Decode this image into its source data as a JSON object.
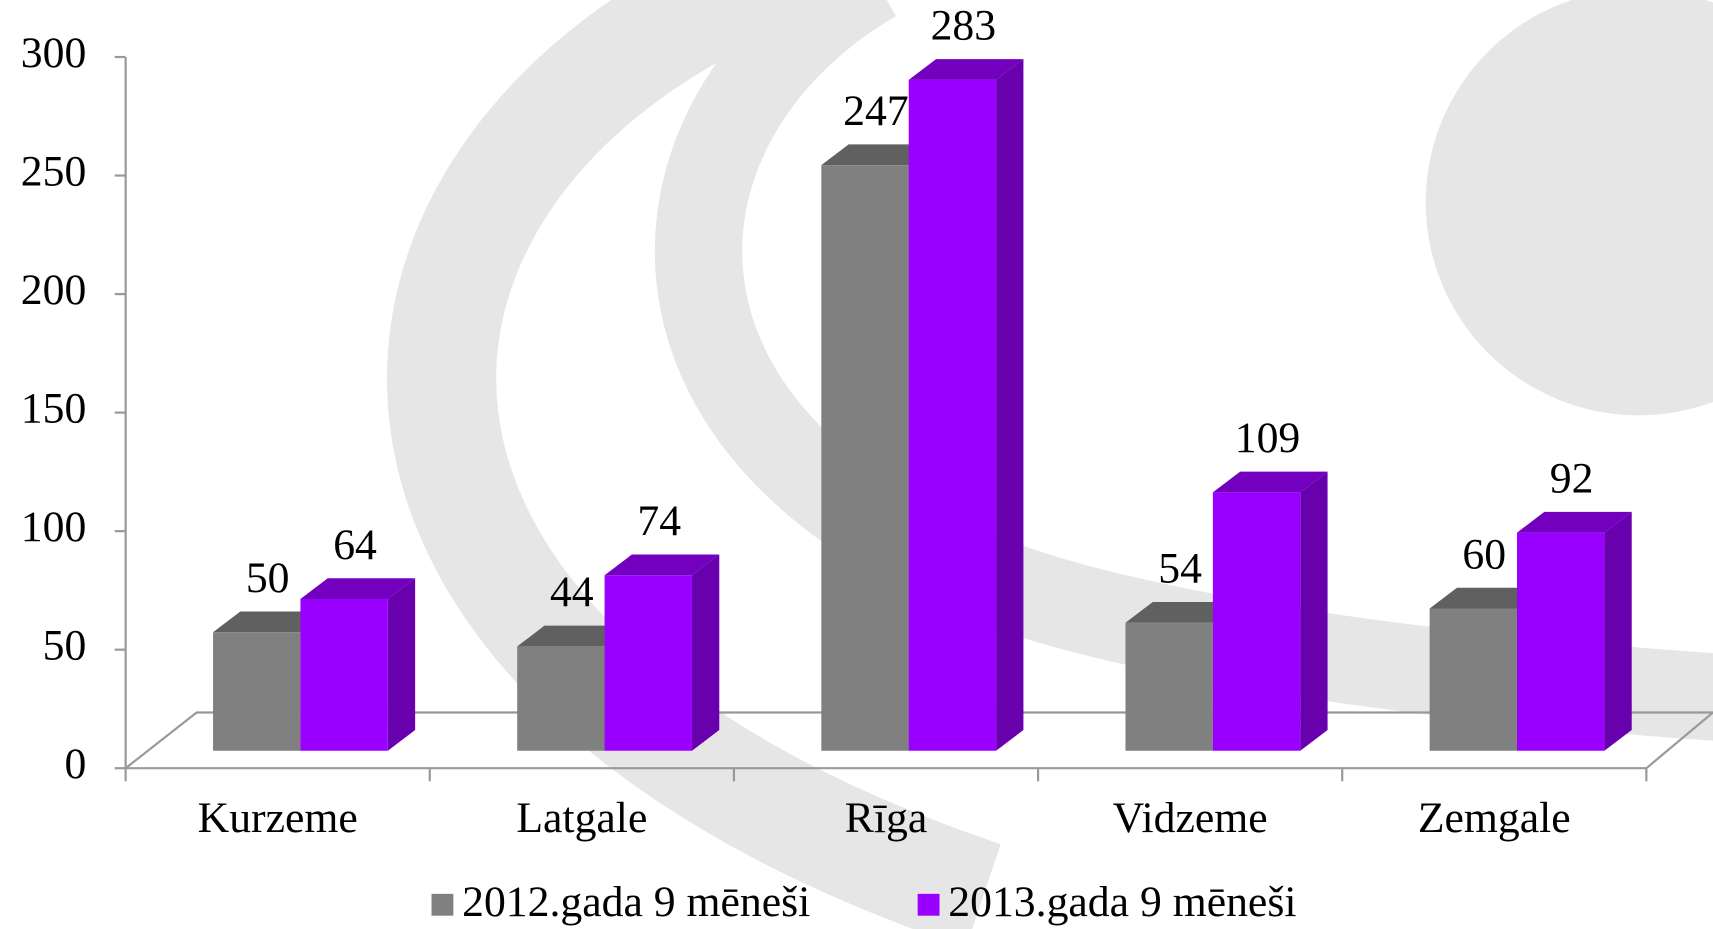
{
  "chart_data": {
    "type": "bar3d",
    "categories": [
      "Kurzeme",
      "Latgale",
      "Rīga",
      "Vidzeme",
      "Zemgale"
    ],
    "series": [
      {
        "name": "2012.gada 9 mēneši",
        "color": "#808080",
        "values": [
          50,
          44,
          247,
          54,
          60
        ]
      },
      {
        "name": "2013.gada 9 mēneši",
        "color": "#9900ff",
        "values": [
          64,
          74,
          283,
          109,
          92
        ]
      }
    ],
    "ylim": [
      0,
      300
    ],
    "yticks": [
      0,
      50,
      100,
      150,
      200,
      250,
      300
    ],
    "legend": "bottom"
  }
}
